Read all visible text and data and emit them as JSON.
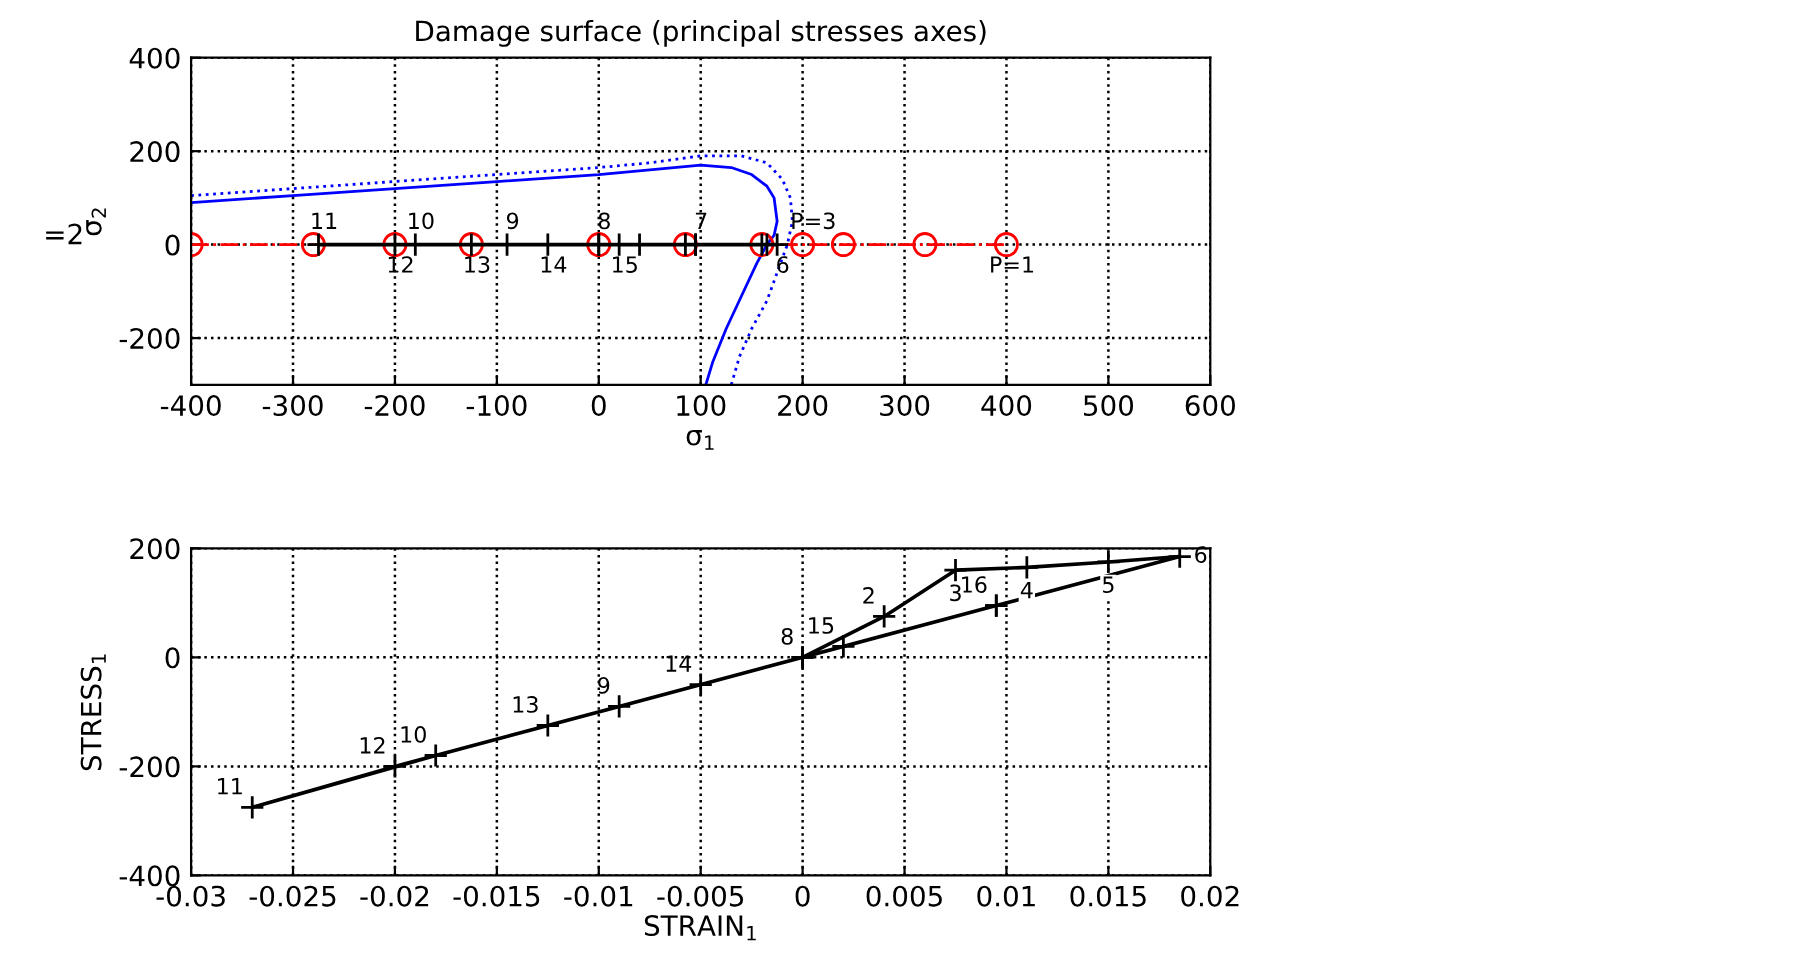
{
  "chart_data": [
    {
      "type": "line",
      "title": "Damage surface (principal stresses axes)",
      "xlabel": "σ$_{1}$",
      "ylabel": "σ$_{2}$",
      "xlim": [
        -400,
        600
      ],
      "ylim": [
        -300,
        400
      ],
      "xticks": [
        -400,
        -300,
        -200,
        -100,
        0,
        100,
        200,
        300,
        400,
        500,
        600
      ],
      "yticks": [
        -200,
        0,
        200,
        400
      ],
      "grid": true,
      "series": [
        {
          "color": "#0000ff",
          "line_style": "solid",
          "marker": "none",
          "x": [
            -400,
            -300,
            -200,
            -100,
            0,
            50,
            100,
            130,
            150,
            165,
            172,
            175,
            172,
            165,
            155,
            140,
            125,
            112,
            105
          ],
          "values": [
            90,
            105,
            120,
            135,
            150,
            160,
            170,
            165,
            150,
            125,
            100,
            50,
            20,
            0,
            -40,
            -110,
            -180,
            -250,
            -300
          ]
        },
        {
          "color": "#0000ff",
          "line_style": "dotted",
          "marker": "none",
          "x": [
            -400,
            -300,
            -200,
            -100,
            0,
            50,
            100,
            140,
            165,
            180,
            188,
            190,
            185,
            175,
            165,
            150,
            138,
            130
          ],
          "values": [
            105,
            120,
            135,
            150,
            165,
            175,
            190,
            190,
            175,
            140,
            100,
            50,
            0,
            -60,
            -120,
            -180,
            -240,
            -300
          ]
        },
        {
          "color": "#ff0000",
          "line_style": "dashdot",
          "marker": "circle",
          "x": [
            -400,
            -280,
            -200,
            -125,
            0,
            85,
            160,
            200,
            240,
            320,
            400
          ],
          "values": [
            0,
            0,
            0,
            0,
            0,
            0,
            0,
            0,
            0,
            0,
            0
          ]
        },
        {
          "color": "#000000",
          "line_style": "solid",
          "marker": "cross",
          "x": [
            0,
            40,
            85,
            160,
            165,
            175,
            95,
            0,
            -90,
            -180,
            -275,
            -200,
            -125,
            -50,
            20,
            95
          ],
          "values": [
            0,
            0,
            0,
            0,
            0,
            0,
            0,
            0,
            0,
            0,
            0,
            0,
            0,
            0,
            0,
            0
          ]
        }
      ],
      "annotations": [
        {
          "text": "11",
          "x": -275,
          "y": 0
        },
        {
          "text": "12",
          "x": -200,
          "y": 0
        },
        {
          "text": "10",
          "x": -180,
          "y": 0
        },
        {
          "text": "13",
          "x": -125,
          "y": 0
        },
        {
          "text": "9",
          "x": -90,
          "y": 0
        },
        {
          "text": "14",
          "x": -50,
          "y": 0
        },
        {
          "text": "8",
          "x": 0,
          "y": 0
        },
        {
          "text": "15",
          "x": 20,
          "y": 0
        },
        {
          "text": "7",
          "x": 95,
          "y": 0
        },
        {
          "text": "6",
          "x": 175,
          "y": 0
        },
        {
          "text": "P=3",
          "x": 205,
          "y": 0
        },
        {
          "text": "P=1",
          "x": 400,
          "y": 0
        },
        "=2"
      ]
    },
    {
      "type": "line",
      "xlabel": "STRAIN$_{1}$",
      "ylabel": "STRESS$_{1}$",
      "xlim": [
        -0.03,
        0.02
      ],
      "ylim": [
        -400,
        200
      ],
      "xticks": [
        -0.03,
        -0.025,
        -0.02,
        -0.015,
        -0.01,
        -0.005,
        0,
        0.005,
        0.01,
        0.015,
        0.02
      ],
      "yticks": [
        -400,
        -200,
        0,
        200
      ],
      "grid": true,
      "series": [
        {
          "color": "#000000",
          "line_style": "solid",
          "marker": "cross",
          "x": [
            0,
            0.004,
            0.0075,
            0.011,
            0.015,
            0.0185,
            0.0095,
            0,
            -0.009,
            -0.018,
            -0.027,
            -0.02,
            -0.0125,
            -0.005,
            0.002,
            0.0095
          ],
          "values": [
            0,
            75,
            160,
            165,
            175,
            185,
            95,
            0,
            -90,
            -180,
            -275,
            -200,
            -125,
            -50,
            20,
            95
          ]
        }
      ],
      "annotations": [
        {
          "text": "11",
          "x": -0.027,
          "y": -275
        },
        {
          "text": "12",
          "x": -0.02,
          "y": -200
        },
        {
          "text": "10",
          "x": -0.018,
          "y": -180
        },
        {
          "text": "13",
          "x": -0.0125,
          "y": -125
        },
        {
          "text": "9",
          "x": -0.009,
          "y": -90
        },
        {
          "text": "14",
          "x": -0.005,
          "y": -50
        },
        {
          "text": "8",
          "x": 0,
          "y": 0
        },
        {
          "text": "15",
          "x": 0.002,
          "y": 20
        },
        {
          "text": "2",
          "x": 0.004,
          "y": 75
        },
        {
          "text": "3",
          "x": 0.0075,
          "y": 160
        },
        {
          "text": "4",
          "x": 0.011,
          "y": 165
        },
        {
          "text": "5",
          "x": 0.015,
          "y": 175
        },
        {
          "text": "6",
          "x": 0.0185,
          "y": 185
        },
        {
          "text": "16",
          "x": 0.0095,
          "y": 95
        }
      ]
    }
  ]
}
